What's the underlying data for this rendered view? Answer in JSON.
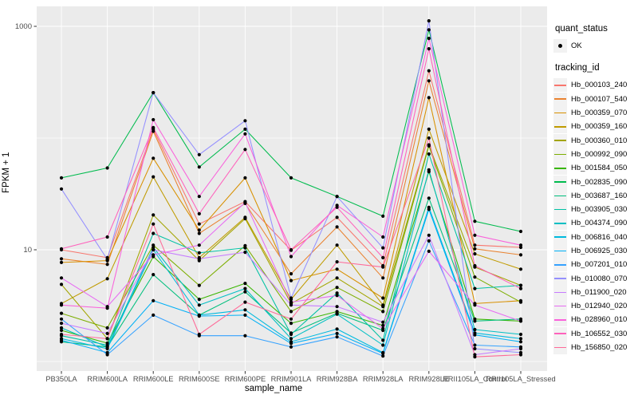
{
  "chart_data": {
    "type": "line",
    "title": "",
    "xlabel": "sample_name",
    "ylabel": "FPKM + 1",
    "y_scale": "log10",
    "ylim": [
      1,
      1300
    ],
    "y_tick_labels": [
      "1000",
      "10"
    ],
    "y_tick_values": [
      1000,
      10
    ],
    "y_gridline_values": [
      1,
      10,
      100,
      1000
    ],
    "grid": "on",
    "panel_bg": "#EBEBEB",
    "grid_color": "#FFFFFF",
    "point_color": "#000000",
    "axis_text_color": "#4D4D4D",
    "categories": [
      "PB350LA",
      "RRIM600LA",
      "RRIM600LE",
      "RRIM600SE",
      "RRIM600PE",
      "RRIM901LA",
      "RRIM928BA",
      "RRIM928LA",
      "RRIM928LE",
      "RRII105LA_Control",
      "RRII105LA_Stressed"
    ],
    "series": [
      {
        "name": "Hb_000103_240",
        "color": "#F8766D",
        "values": [
          10,
          8.5,
          120,
          17,
          27,
          9.9,
          19.5,
          7.2,
          400,
          11,
          10.5
        ]
      },
      {
        "name": "Hb_000107_540",
        "color": "#EA8331",
        "values": [
          8.3,
          7.4,
          115,
          14,
          26,
          6.1,
          16,
          5.6,
          325,
          10.2,
          9.0
        ]
      },
      {
        "name": "Hb_000359_070",
        "color": "#D89000",
        "values": [
          7.7,
          8.0,
          66,
          15,
          44,
          5.3,
          6.7,
          3.7,
          230,
          3.3,
          3.5
        ]
      },
      {
        "name": "Hb_000359_160",
        "color": "#C09B00",
        "values": [
          3.3,
          5.5,
          45,
          8.5,
          19.5,
          3.6,
          11,
          3.2,
          120,
          9.2,
          6.7
        ]
      },
      {
        "name": "Hb_000360_010",
        "color": "#A3A500",
        "values": [
          4.9,
          1.6,
          20.5,
          8.0,
          19,
          3.3,
          5.6,
          3.1,
          87,
          7.0,
          4.8
        ]
      },
      {
        "name": "Hb_000992_090",
        "color": "#7CAE00",
        "values": [
          2.7,
          2.0,
          11,
          4.8,
          10.9,
          2.8,
          4.6,
          2.8,
          85,
          5.7,
          3.4
        ]
      },
      {
        "name": "Hb_001584_050",
        "color": "#39B600",
        "values": [
          1.9,
          1.46,
          8.7,
          3.6,
          5.0,
          2.2,
          2.8,
          2.1,
          50,
          2.4,
          2.3
        ]
      },
      {
        "name": "Hb_002835_090",
        "color": "#00BB4E",
        "values": [
          44,
          54,
          255,
          55,
          120,
          44,
          30,
          20,
          930,
          18,
          14.6
        ]
      },
      {
        "name": "Hb_003687_160",
        "color": "#00BF7D",
        "values": [
          1.5,
          1.35,
          6.0,
          2.6,
          4.2,
          1.8,
          2.7,
          1.9,
          29,
          2.3,
          2.4
        ]
      },
      {
        "name": "Hb_003905_030",
        "color": "#00C1A3",
        "values": [
          1.7,
          1.4,
          14,
          9.4,
          10.4,
          1.75,
          4.1,
          1.55,
          72,
          4.5,
          4.8
        ]
      },
      {
        "name": "Hb_004374_090",
        "color": "#00BFC4",
        "values": [
          2.0,
          1.35,
          10.5,
          3.2,
          4.5,
          1.6,
          2.65,
          1.4,
          52,
          1.93,
          1.75
        ]
      },
      {
        "name": "Hb_006816_040",
        "color": "#00BADE",
        "values": [
          1.6,
          1.3,
          10,
          2.6,
          2.9,
          1.5,
          1.95,
          1.2,
          24,
          1.8,
          1.6
        ]
      },
      {
        "name": "Hb_006925_030",
        "color": "#00B0F6",
        "values": [
          1.55,
          1.2,
          3.5,
          2.55,
          2.6,
          1.45,
          1.78,
          1.18,
          23,
          1.73,
          1.5
        ]
      },
      {
        "name": "Hb_007201_010",
        "color": "#35A2FF",
        "values": [
          2.4,
          1.15,
          2.6,
          1.7,
          1.7,
          1.35,
          1.66,
          1.12,
          12,
          1.4,
          1.35
        ]
      },
      {
        "name": "Hb_010080_070",
        "color": "#9590FF",
        "values": [
          35,
          8.2,
          255,
          71,
          143,
          3.7,
          30,
          10.4,
          1120,
          1.3,
          1.2
        ]
      },
      {
        "name": "Hb_011900_020",
        "color": "#C77CFF",
        "values": [
          2.2,
          1.78,
          10,
          8.3,
          9.5,
          3.2,
          3.1,
          2.25,
          13.5,
          1.15,
          1.3
        ]
      },
      {
        "name": "Hb_012940_020",
        "color": "#E76BF3",
        "values": [
          5.6,
          3.1,
          9.0,
          11,
          26.5,
          3.4,
          3.9,
          1.97,
          9.7,
          3.2,
          2.3
        ]
      },
      {
        "name": "Hb_028960_010",
        "color": "#FA62DB",
        "values": [
          3.2,
          3.0,
          146,
          30,
          109,
          8.7,
          25,
          13,
          780,
          13.5,
          11
        ]
      },
      {
        "name": "Hb_106552_030",
        "color": "#FF62BC",
        "values": [
          10.2,
          13,
          124,
          21,
          79,
          10,
          24,
          8.5,
          630,
          7.2,
          4.5
        ]
      },
      {
        "name": "Hb_156850_020",
        "color": "#FF6A98",
        "values": [
          1.75,
          1.6,
          17,
          1.75,
          3.4,
          2.4,
          7.8,
          7.0,
          100,
          1.1,
          1.15
        ]
      }
    ],
    "legend": {
      "position": "right",
      "quant_title": "quant_status",
      "quant_items": [
        {
          "label": "OK"
        }
      ],
      "series_title": "tracking_id"
    }
  }
}
